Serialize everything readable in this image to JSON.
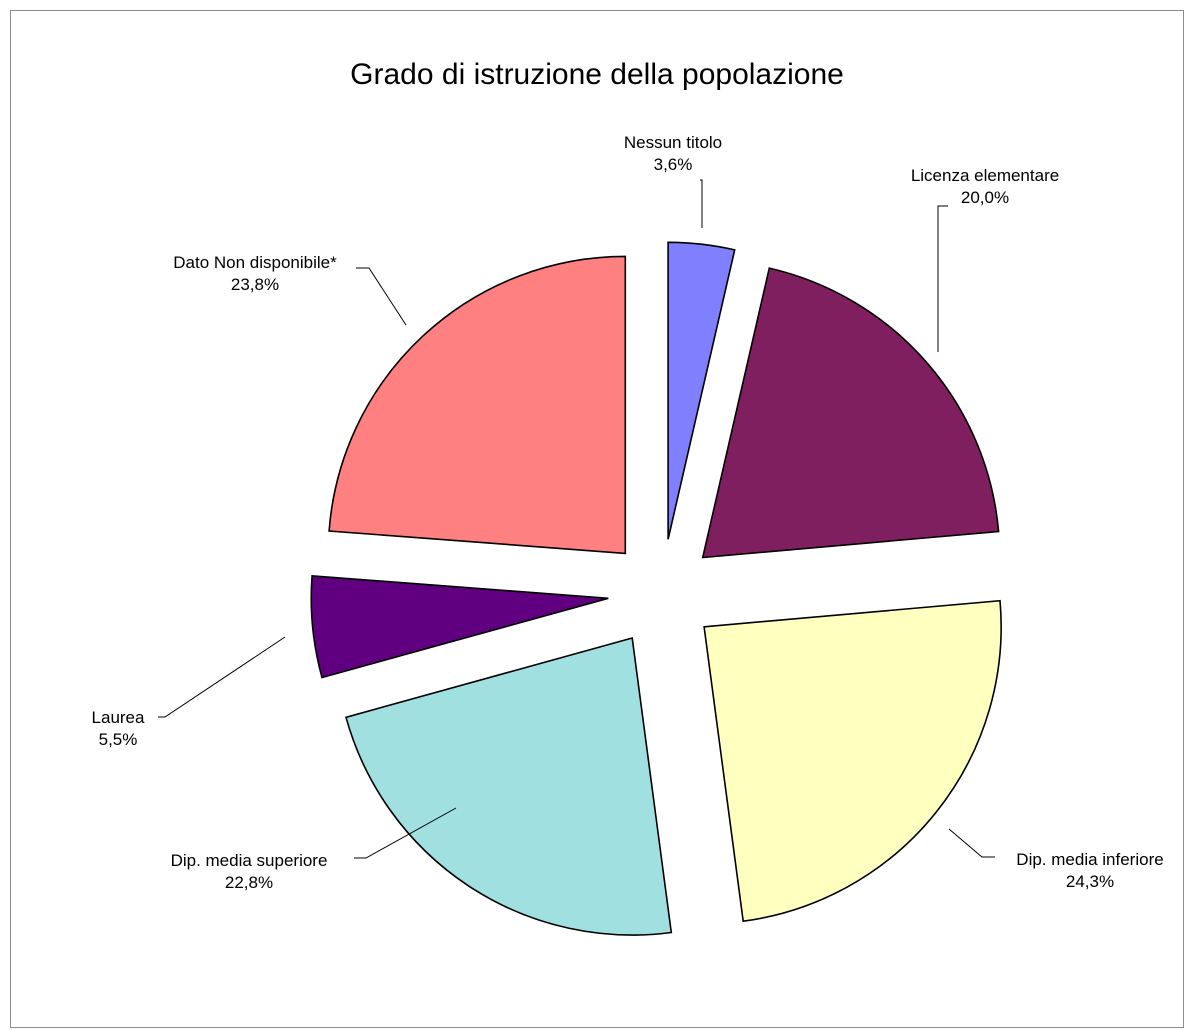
{
  "chart_data": {
    "type": "pie",
    "title": "Grado di istruzione della popolazione",
    "exploded": true,
    "slices": [
      {
        "label": "Nessun titolo",
        "value": 3.6,
        "display": "3,6%",
        "color": "#8080ff"
      },
      {
        "label": "Licenza elementare",
        "value": 20.0,
        "display": "20,0%",
        "color": "#7f1f5f"
      },
      {
        "label": "Dip. media inferiore",
        "value": 24.3,
        "display": "24,3%",
        "color": "#ffffc0"
      },
      {
        "label": "Dip. media superiore",
        "value": 22.8,
        "display": "22,8%",
        "color": "#a0e0e0"
      },
      {
        "label": "Laurea",
        "value": 5.5,
        "display": "5,5%",
        "color": "#600080"
      },
      {
        "label": "Dato Non disponibile*",
        "value": 23.8,
        "display": "23,8%",
        "color": "#ff8080"
      }
    ]
  }
}
